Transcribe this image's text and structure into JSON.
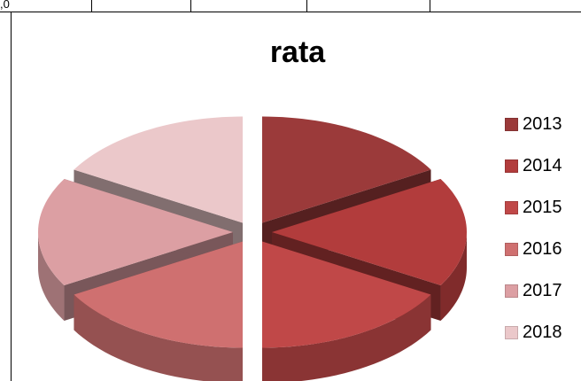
{
  "top_table": {
    "cells": [
      ",0",
      "",
      ",",
      "",
      ",",
      ""
    ]
  },
  "chart_data": {
    "type": "pie",
    "title": "rata",
    "categories": [
      "2013",
      "2014",
      "2015",
      "2016",
      "2017",
      "2018"
    ],
    "values": [
      16.7,
      16.7,
      16.7,
      16.7,
      16.7,
      16.7
    ],
    "legend_position": "right",
    "colors": [
      "#9b3a3a",
      "#b23c3c",
      "#c04848",
      "#cf7070",
      "#dc9fa3",
      "#ebc8ca"
    ],
    "exploded": true,
    "three_d": true
  }
}
